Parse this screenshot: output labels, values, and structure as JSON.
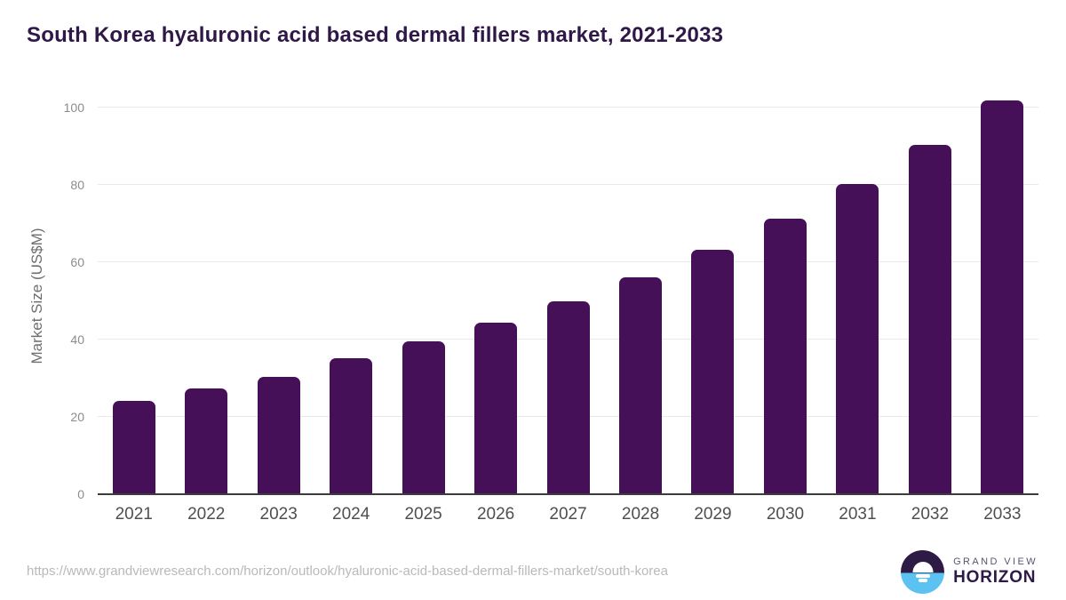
{
  "title": "South Korea hyaluronic acid based dermal fillers market, 2021-2033",
  "chart_data": {
    "type": "bar",
    "categories": [
      "2021",
      "2022",
      "2023",
      "2024",
      "2025",
      "2026",
      "2027",
      "2028",
      "2029",
      "2030",
      "2031",
      "2032",
      "2033"
    ],
    "values": [
      24.2,
      27.3,
      30.4,
      35.1,
      39.5,
      44.3,
      49.9,
      56.1,
      63.2,
      71.3,
      80.2,
      90.3,
      101.9
    ],
    "title": "South Korea hyaluronic acid based dermal fillers market, 2021-2033",
    "xlabel": "",
    "ylabel": "Market Size (US$M)",
    "ylim": [
      0,
      102.5
    ],
    "yticks": [
      0,
      20,
      40,
      60,
      80,
      100
    ],
    "grid": true,
    "legend": "none",
    "bar_color": "#451057"
  },
  "footer": {
    "source_url": "https://www.grandviewresearch.com/horizon/outlook/hyaluronic-acid-based-dermal-fillers-market/south-korea",
    "logo_line1": "GRAND VIEW",
    "logo_line2": "HORIZON"
  },
  "colors": {
    "bar": "#451057",
    "title_text": "#2f1747",
    "axis_line": "#3c3c3c",
    "gridline": "#e9e9e9",
    "y_tick_text": "#8c8c8c",
    "x_tick_text": "#4f4f4f",
    "y_axis_title_text": "#6e6e6e",
    "source_url_text": "#b9b9b9",
    "logo_blue": "#5bc2f2",
    "logo_dark_purple": "#2d1b45"
  }
}
